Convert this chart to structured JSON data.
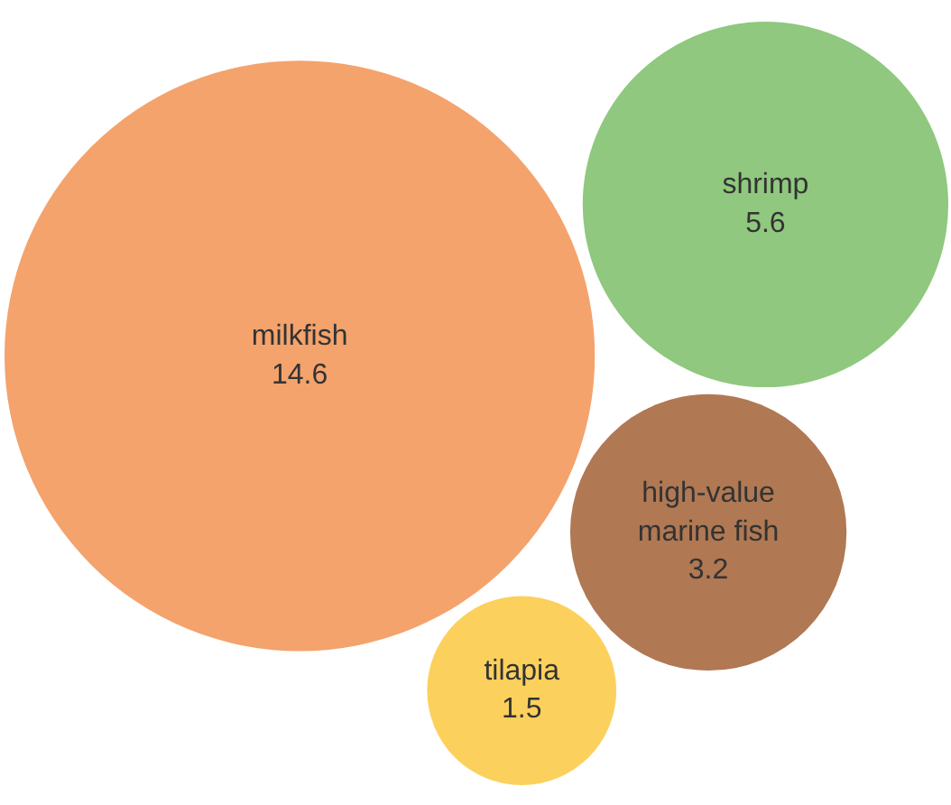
{
  "chart_data": {
    "type": "other",
    "categories": [
      "milkfish",
      "shrimp",
      "high-value marine fish",
      "tilapia"
    ],
    "values": [
      14.6,
      5.6,
      3.2,
      1.5
    ],
    "colors": [
      "#f4a36c",
      "#8fc87e",
      "#b07853",
      "#fcd05c"
    ],
    "data_labels": true
  }
}
